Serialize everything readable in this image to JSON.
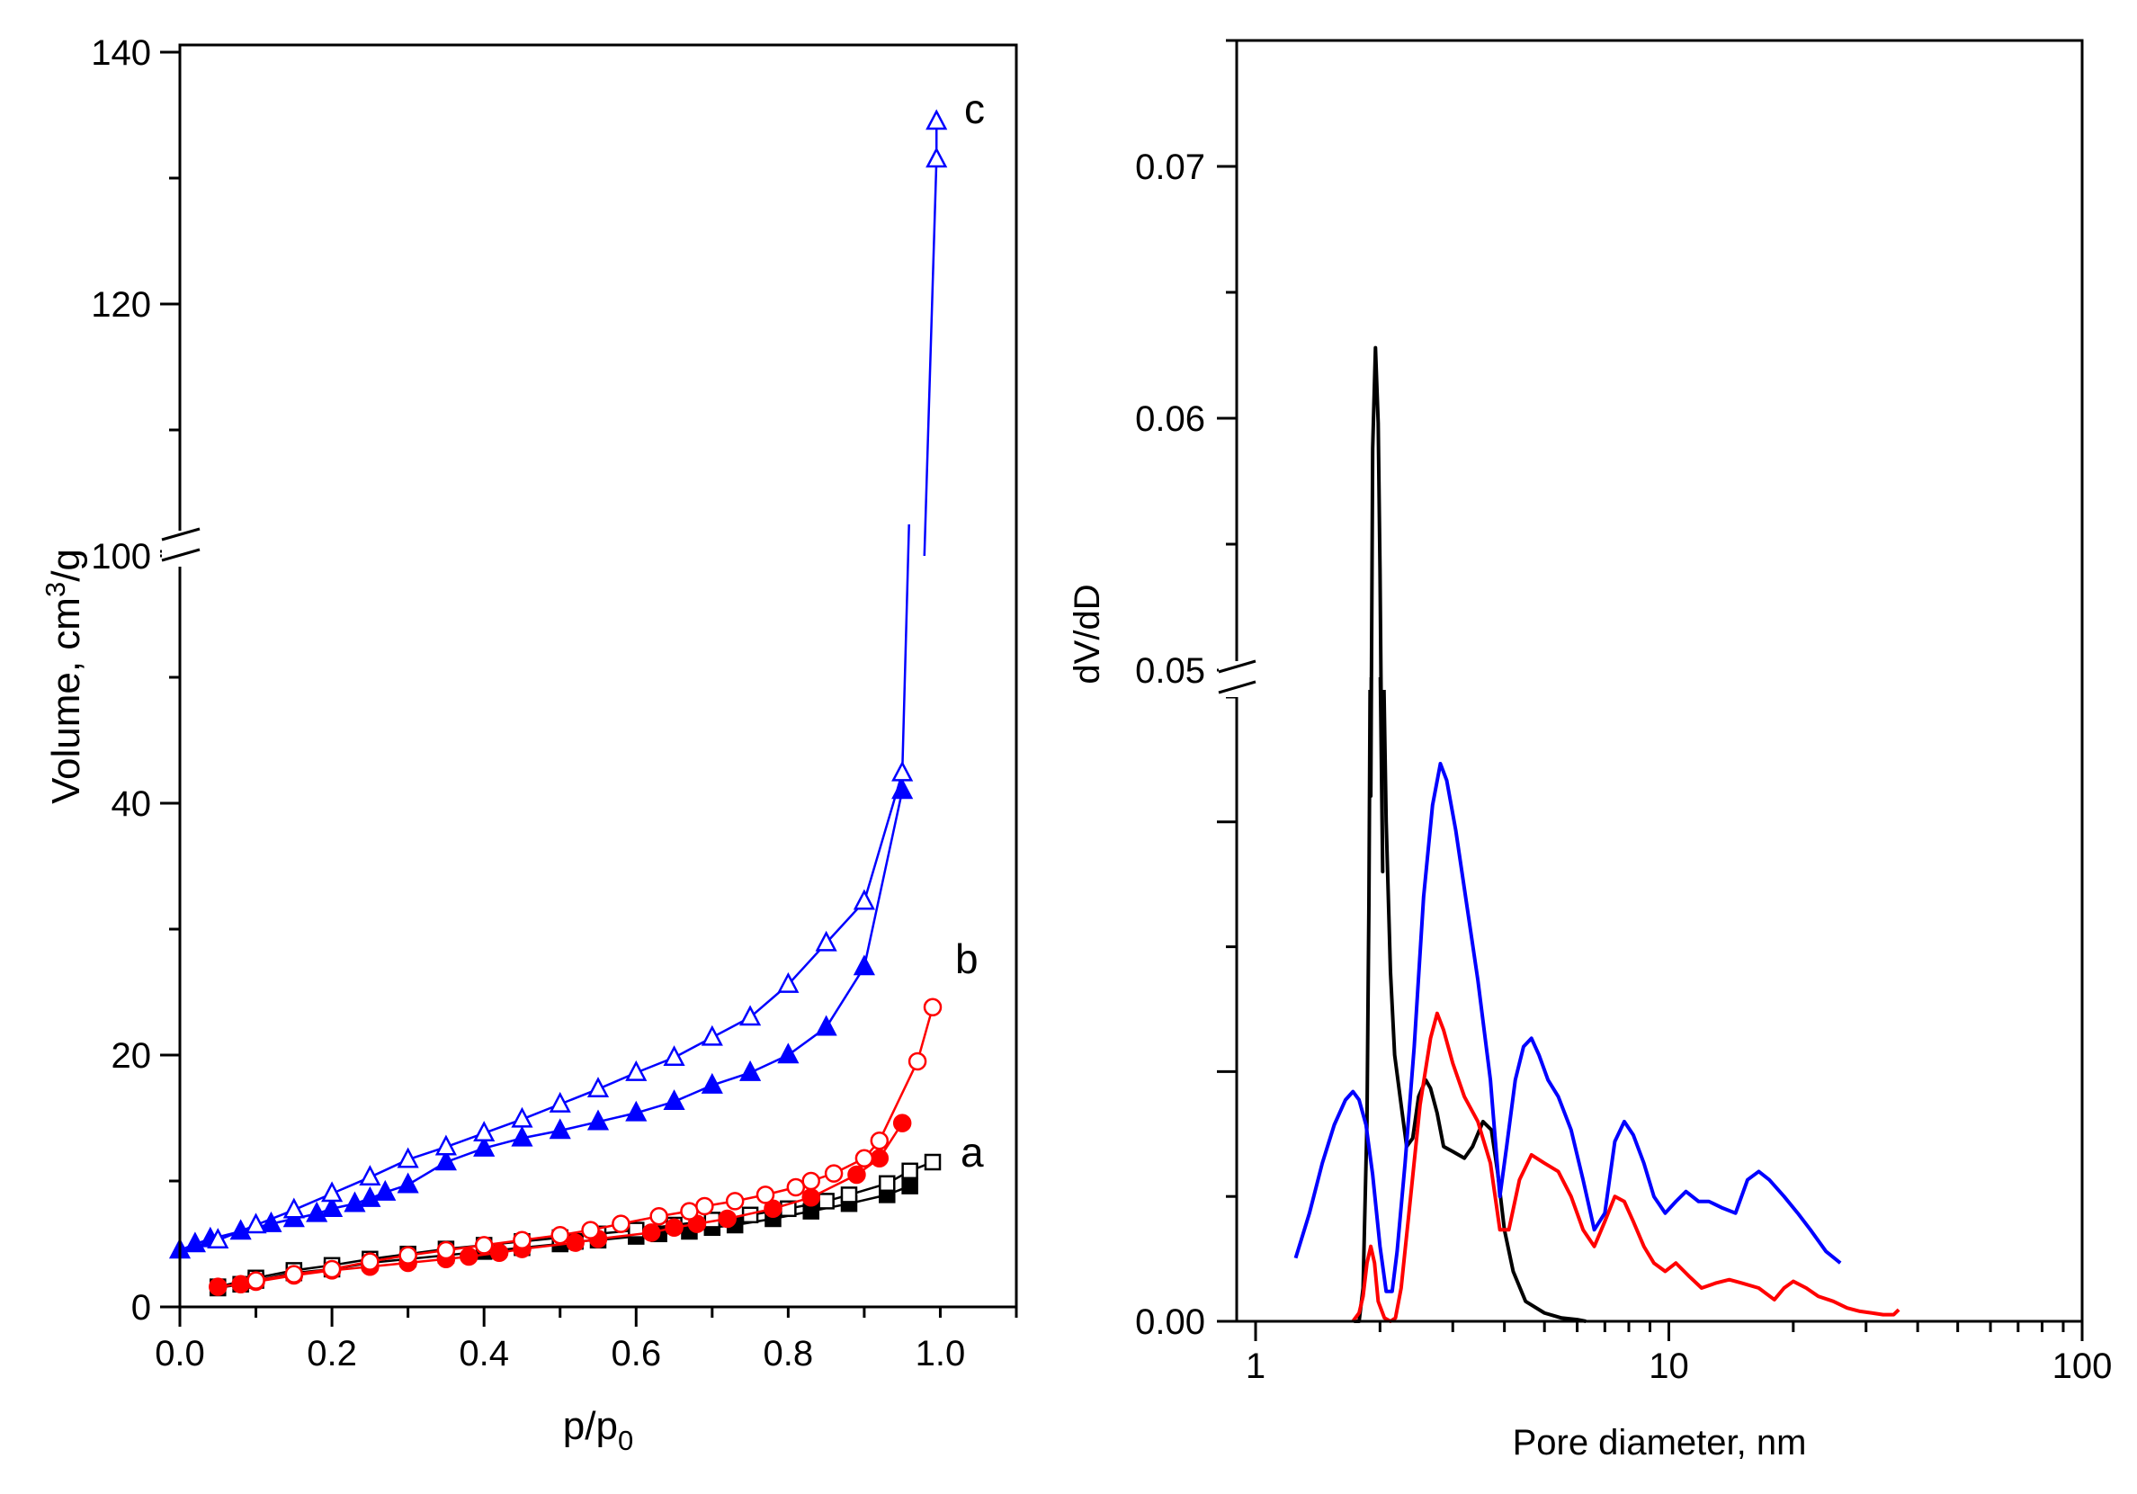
{
  "colors": {
    "a": "#000000",
    "b": "#ff0000",
    "c": "#0000ff"
  },
  "chart_data": [
    {
      "type": "line",
      "title": "",
      "xlabel": "p/p",
      "xlabel_sub": "0",
      "ylabel": "Volume, cm",
      "ylabel_sup": "3",
      "ylabel_tail": "/g",
      "xlim": [
        0,
        1.1
      ],
      "x_ticks": [
        "0.0",
        "0.2",
        "0.4",
        "0.6",
        "0.8",
        "1.0"
      ],
      "y_ticks_lower": [
        "0",
        "20",
        "40"
      ],
      "y_ticks_upper": [
        "100",
        "120",
        "140"
      ],
      "y_break": {
        "lower_range": [
          0,
          60
        ],
        "upper_range": [
          100,
          140
        ]
      },
      "curve_labels": [
        "a",
        "b",
        "c"
      ],
      "series": [
        {
          "name": "a adsorption",
          "label": "a",
          "marker": "square",
          "filled": true,
          "x": [
            0.05,
            0.08,
            0.1,
            0.15,
            0.2,
            0.25,
            0.3,
            0.35,
            0.4,
            0.45,
            0.5,
            0.52,
            0.55,
            0.6,
            0.63,
            0.67,
            0.7,
            0.73,
            0.78,
            0.83,
            0.88,
            0.93,
            0.96
          ],
          "y": [
            1.5,
            1.8,
            2.1,
            2.7,
            3.0,
            3.5,
            3.8,
            4.1,
            4.4,
            4.7,
            5.0,
            5.2,
            5.3,
            5.6,
            5.8,
            6.0,
            6.3,
            6.5,
            7.0,
            7.6,
            8.2,
            8.9,
            9.6
          ]
        },
        {
          "name": "a desorption",
          "label": "a",
          "marker": "square",
          "filled": false,
          "x": [
            0.05,
            0.1,
            0.15,
            0.2,
            0.25,
            0.3,
            0.35,
            0.4,
            0.45,
            0.5,
            0.55,
            0.6,
            0.65,
            0.7,
            0.75,
            0.8,
            0.85,
            0.88,
            0.93,
            0.96,
            0.99
          ],
          "y": [
            1.6,
            2.3,
            2.9,
            3.3,
            3.8,
            4.2,
            4.6,
            4.9,
            5.2,
            5.5,
            5.8,
            6.1,
            6.5,
            6.9,
            7.3,
            7.8,
            8.4,
            8.9,
            9.8,
            10.8,
            11.5
          ]
        },
        {
          "name": "b adsorption",
          "label": "b",
          "marker": "circle",
          "filled": true,
          "x": [
            0.05,
            0.08,
            0.1,
            0.15,
            0.2,
            0.25,
            0.3,
            0.35,
            0.38,
            0.42,
            0.45,
            0.52,
            0.55,
            0.62,
            0.65,
            0.68,
            0.72,
            0.78,
            0.83,
            0.89,
            0.92,
            0.95
          ],
          "y": [
            1.6,
            1.8,
            2.0,
            2.5,
            2.9,
            3.2,
            3.5,
            3.8,
            4.0,
            4.3,
            4.6,
            5.1,
            5.4,
            5.9,
            6.3,
            6.6,
            7.0,
            7.8,
            8.7,
            10.5,
            11.8,
            14.6
          ]
        },
        {
          "name": "b desorption",
          "label": "b",
          "marker": "circle",
          "filled": false,
          "x": [
            0.1,
            0.15,
            0.2,
            0.25,
            0.3,
            0.35,
            0.4,
            0.45,
            0.5,
            0.54,
            0.58,
            0.63,
            0.67,
            0.69,
            0.73,
            0.77,
            0.81,
            0.83,
            0.86,
            0.9,
            0.92,
            0.97,
            0.99
          ],
          "y": [
            2.1,
            2.6,
            3.0,
            3.6,
            4.1,
            4.5,
            4.9,
            5.3,
            5.7,
            6.1,
            6.6,
            7.2,
            7.6,
            8.0,
            8.4,
            8.9,
            9.5,
            10.0,
            10.6,
            11.8,
            13.2,
            19.5,
            23.8
          ]
        },
        {
          "name": "c adsorption",
          "label": "c",
          "marker": "triangle",
          "filled": true,
          "x": [
            0.0,
            0.02,
            0.04,
            0.08,
            0.12,
            0.15,
            0.18,
            0.2,
            0.23,
            0.25,
            0.27,
            0.3,
            0.35,
            0.4,
            0.45,
            0.5,
            0.55,
            0.6,
            0.65,
            0.7,
            0.75,
            0.8,
            0.85,
            0.9,
            0.95
          ],
          "y": [
            4.5,
            5.0,
            5.4,
            6.0,
            6.6,
            7.0,
            7.4,
            7.8,
            8.2,
            8.6,
            9.1,
            9.7,
            11.5,
            12.6,
            13.4,
            14.0,
            14.7,
            15.4,
            16.3,
            17.6,
            18.6,
            20.0,
            22.2,
            27.0,
            41.0
          ]
        },
        {
          "name": "c desorption",
          "label": "c",
          "marker": "triangle",
          "filled": false,
          "x": [
            0.05,
            0.1,
            0.15,
            0.2,
            0.25,
            0.3,
            0.35,
            0.4,
            0.45,
            0.5,
            0.55,
            0.6,
            0.65,
            0.7,
            0.75,
            0.8,
            0.85,
            0.9,
            0.95,
            0.995,
            0.995
          ],
          "y": [
            5.3,
            6.5,
            7.7,
            9.0,
            10.3,
            11.7,
            12.7,
            13.8,
            14.9,
            16.1,
            17.3,
            18.6,
            19.8,
            21.4,
            23.0,
            25.6,
            28.9,
            32.2,
            42.4,
            131.5,
            134.5
          ]
        }
      ]
    },
    {
      "type": "line",
      "title": "",
      "xlabel": "Pore diameter, nm",
      "ylabel": "dV/dD",
      "x_scale": "log",
      "xlim": [
        0.9,
        100
      ],
      "x_ticks": [
        "1",
        "10",
        "100"
      ],
      "y_ticks_lower": [
        "0.00"
      ],
      "y_ticks_upper": [
        "0.05",
        "0.06",
        "0.07"
      ],
      "y_break": {
        "lower_range": [
          0,
          0.0375
        ],
        "upper_range": [
          0.05,
          0.075
        ]
      },
      "series": [
        {
          "name": "a",
          "color_key": "a",
          "x": [
            1.73,
            1.78,
            1.82,
            1.86,
            1.88,
            1.9,
            1.92,
            1.95,
            1.98,
            2.0,
            2.03,
            2.07,
            2.12,
            2.17,
            2.25,
            2.32,
            2.4,
            2.48,
            2.58,
            2.65,
            2.75,
            2.85,
            3.0,
            3.2,
            3.35,
            3.55,
            3.72,
            3.85,
            4.0,
            4.2,
            4.5,
            5.0,
            5.5,
            6.0,
            6.3
          ],
          "y": [
            0.0,
            0.0,
            0.002,
            0.012,
            0.025,
            0.045,
            0.0588,
            0.0628,
            0.0598,
            0.054,
            0.042,
            0.03,
            0.021,
            0.016,
            0.013,
            0.0105,
            0.011,
            0.0135,
            0.0145,
            0.014,
            0.0125,
            0.0105,
            0.0102,
            0.0098,
            0.0105,
            0.012,
            0.0115,
            0.009,
            0.0055,
            0.003,
            0.0012,
            0.0005,
            0.0002,
            0.0001,
            0.0
          ]
        },
        {
          "name": "b",
          "color_key": "b",
          "x": [
            1.72,
            1.78,
            1.82,
            1.86,
            1.9,
            1.94,
            1.98,
            2.05,
            2.12,
            2.18,
            2.25,
            2.35,
            2.5,
            2.65,
            2.75,
            2.85,
            3.0,
            3.2,
            3.45,
            3.7,
            3.9,
            4.1,
            4.35,
            4.65,
            5.0,
            5.4,
            5.8,
            6.2,
            6.6,
            7.0,
            7.4,
            7.8,
            8.2,
            8.7,
            9.2,
            9.8,
            10.4,
            11.2,
            12.0,
            13.0,
            14.0,
            15.0,
            16.5,
            18.0,
            19.0,
            20.0,
            21.5,
            23.0,
            25.0,
            27.0,
            29.0,
            31.0,
            33.0,
            35.0,
            36.0
          ],
          "y": [
            0.0,
            0.0005,
            0.0015,
            0.0035,
            0.0045,
            0.0035,
            0.0012,
            0.0002,
            0.0,
            0.0002,
            0.002,
            0.0065,
            0.013,
            0.017,
            0.0185,
            0.0175,
            0.0155,
            0.0135,
            0.012,
            0.0095,
            0.0055,
            0.0055,
            0.0085,
            0.01,
            0.0095,
            0.009,
            0.0075,
            0.0055,
            0.0045,
            0.006,
            0.0075,
            0.0072,
            0.006,
            0.0045,
            0.0035,
            0.003,
            0.0035,
            0.0027,
            0.002,
            0.0023,
            0.0025,
            0.0023,
            0.002,
            0.0013,
            0.002,
            0.0024,
            0.002,
            0.0015,
            0.0012,
            0.0008,
            0.0006,
            0.0005,
            0.0004,
            0.0004,
            0.0007
          ]
        },
        {
          "name": "c",
          "color_key": "c",
          "x": [
            1.25,
            1.35,
            1.45,
            1.55,
            1.65,
            1.72,
            1.78,
            1.85,
            1.92,
            2.0,
            2.07,
            2.14,
            2.2,
            2.3,
            2.42,
            2.55,
            2.68,
            2.8,
            2.9,
            3.05,
            3.2,
            3.45,
            3.7,
            3.9,
            4.05,
            4.25,
            4.45,
            4.65,
            4.85,
            5.1,
            5.4,
            5.8,
            6.2,
            6.6,
            7.0,
            7.4,
            7.8,
            8.2,
            8.7,
            9.2,
            9.8,
            10.4,
            11.0,
            11.8,
            12.5,
            13.5,
            14.5,
            15.5,
            16.5,
            17.5,
            19.0,
            20.5,
            22.0,
            24.0,
            26.0
          ],
          "y": [
            0.0038,
            0.0065,
            0.0095,
            0.0118,
            0.0133,
            0.0138,
            0.0133,
            0.0118,
            0.0088,
            0.0045,
            0.0018,
            0.0018,
            0.0042,
            0.0095,
            0.0165,
            0.0255,
            0.031,
            0.0335,
            0.0325,
            0.0295,
            0.026,
            0.0205,
            0.0145,
            0.0075,
            0.0105,
            0.0145,
            0.0165,
            0.017,
            0.016,
            0.0145,
            0.0135,
            0.0115,
            0.0085,
            0.0055,
            0.0065,
            0.0108,
            0.012,
            0.0112,
            0.0095,
            0.0075,
            0.0065,
            0.0072,
            0.0078,
            0.0072,
            0.0072,
            0.0068,
            0.0065,
            0.0085,
            0.009,
            0.0085,
            0.0075,
            0.0065,
            0.0055,
            0.0042,
            0.0035
          ]
        }
      ]
    }
  ]
}
